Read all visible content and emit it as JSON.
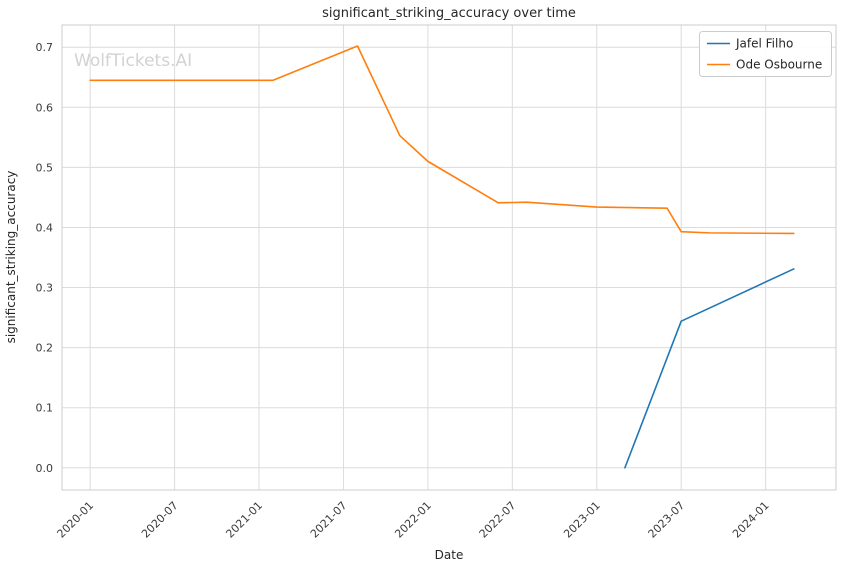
{
  "watermark": "WolfTickets.AI",
  "chart_data": {
    "type": "line",
    "title": "significant_striking_accuracy over time",
    "xlabel": "Date",
    "ylabel": "significant_striking_accuracy",
    "grid": true,
    "legend_position": "upper right",
    "x_ticks": [
      "2020-01",
      "2020-07",
      "2021-01",
      "2021-07",
      "2022-01",
      "2022-07",
      "2023-01",
      "2023-07",
      "2024-01"
    ],
    "y_ticks": [
      0.0,
      0.1,
      0.2,
      0.3,
      0.4,
      0.5,
      0.6,
      0.7
    ],
    "xlim": [
      "2019-11",
      "2024-06"
    ],
    "ylim": [
      -0.037,
      0.737
    ],
    "series": [
      {
        "name": "Jafel Filho",
        "color": "#1f77b4",
        "points": [
          [
            "2023-03",
            0.0
          ],
          [
            "2023-07",
            0.244
          ],
          [
            "2024-03",
            0.331
          ]
        ]
      },
      {
        "name": "Ode Osbourne",
        "color": "#ff7f0e",
        "points": [
          [
            "2020-01",
            0.645
          ],
          [
            "2020-07",
            0.645
          ],
          [
            "2021-02",
            0.645
          ],
          [
            "2021-08",
            0.702
          ],
          [
            "2021-11",
            0.553
          ],
          [
            "2022-01",
            0.51
          ],
          [
            "2022-06",
            0.441
          ],
          [
            "2022-08",
            0.442
          ],
          [
            "2023-01",
            0.434
          ],
          [
            "2023-06",
            0.432
          ],
          [
            "2023-07",
            0.393
          ],
          [
            "2023-09",
            0.391
          ],
          [
            "2024-03",
            0.39
          ]
        ]
      }
    ]
  }
}
